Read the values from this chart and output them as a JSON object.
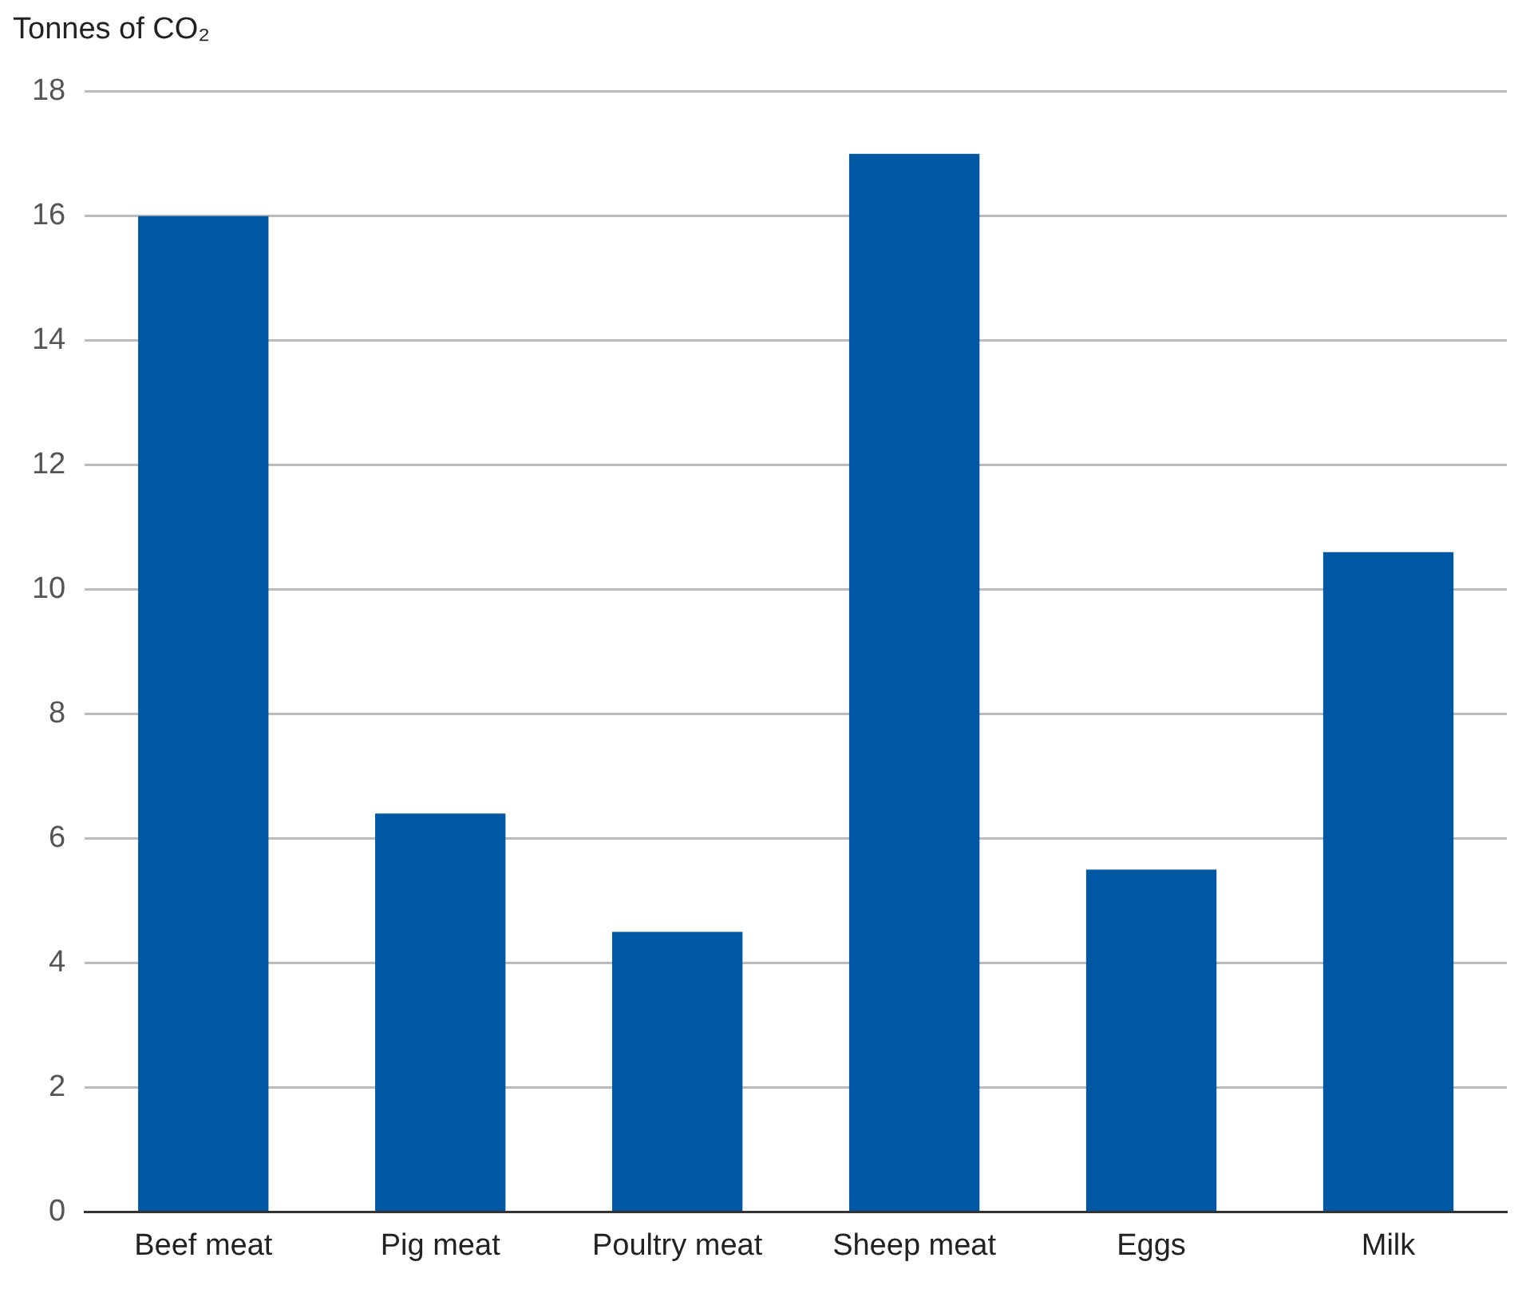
{
  "chart_data": {
    "type": "bar",
    "ylabel": "Tonnes of CO₂",
    "categories": [
      "Beef meat",
      "Pig meat",
      "Poultry meat",
      "Sheep meat",
      "Eggs",
      "Milk"
    ],
    "values": [
      16,
      6.4,
      4.5,
      17,
      5.5,
      10.6
    ],
    "color": "#0057a4",
    "ylim": [
      0,
      18
    ],
    "yticks": [
      0,
      2,
      4,
      6,
      8,
      10,
      12,
      14,
      16,
      18
    ],
    "grid": "y"
  }
}
